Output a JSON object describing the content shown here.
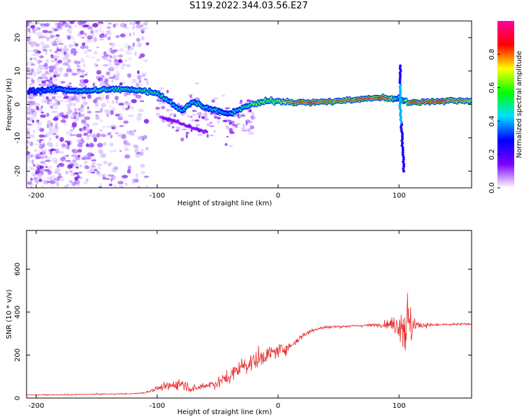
{
  "title": "S119.2022.344.03.56.E27",
  "chart_data": [
    {
      "type": "heatmap",
      "xlabel": "Height of straight line (km)",
      "ylabel": "Frequency (Hz)",
      "xlim": [
        -208,
        160
      ],
      "ylim": [
        -25,
        25
      ],
      "xticks": [
        -200,
        -100,
        0,
        100
      ],
      "yticks": [
        -20,
        -10,
        0,
        10,
        20
      ],
      "colorbar": {
        "label": "Normalized spectral amplitude",
        "range": [
          0,
          1
        ],
        "ticks": [
          0.0,
          0.2,
          0.4,
          0.6,
          0.8
        ],
        "tick_labels": [
          "0.0",
          "0.2",
          "0.4",
          "0.6",
          "0.8"
        ],
        "colors": [
          "#ffffff",
          "#7b00ff",
          "#0000ff",
          "#00e0ff",
          "#00ff00",
          "#ffff00",
          "#ff0000",
          "#ff00a0"
        ]
      },
      "ridge": {
        "x": [
          -205,
          -180,
          -160,
          -140,
          -120,
          -110,
          -100,
          -90,
          -80,
          -70,
          -60,
          -50,
          -40,
          -30,
          -20,
          -10,
          0,
          20,
          40,
          60,
          80,
          90,
          95,
          100,
          105,
          110,
          130,
          160
        ],
        "freq": [
          4,
          4.5,
          4,
          4.5,
          4.5,
          4,
          3.5,
          1,
          -2,
          1,
          -1,
          -2,
          -3,
          -1,
          0,
          1,
          1,
          0.5,
          0.8,
          1.2,
          2,
          2,
          1.5,
          2,
          1,
          0.5,
          1,
          1.2
        ],
        "amplitude": [
          0.25,
          0.35,
          0.4,
          0.45,
          0.45,
          0.5,
          0.45,
          0.4,
          0.4,
          0.45,
          0.4,
          0.4,
          0.35,
          0.45,
          0.6,
          0.55,
          0.65,
          0.9,
          0.8,
          0.85,
          0.85,
          0.9,
          0.6,
          0.4,
          0.5,
          0.85,
          0.9,
          0.7
        ]
      }
    },
    {
      "type": "line",
      "xlabel": "Height of straight line (km)",
      "ylabel": "SNR (10 * v/v)",
      "xlim": [
        -208,
        160
      ],
      "ylim": [
        0,
        780
      ],
      "xticks": [
        -200,
        -100,
        0,
        100
      ],
      "yticks": [
        0,
        200,
        400,
        600
      ],
      "series": [
        {
          "color": "#e83030",
          "x": [
            -208,
            -180,
            -150,
            -120,
            -110,
            -100,
            -90,
            -80,
            -70,
            -60,
            -50,
            -40,
            -30,
            -20,
            -10,
            0,
            10,
            20,
            30,
            40,
            60,
            80,
            90,
            100,
            105,
            110,
            115,
            130,
            160
          ],
          "y": [
            15,
            15,
            18,
            20,
            25,
            45,
            55,
            70,
            40,
            60,
            70,
            100,
            150,
            170,
            200,
            220,
            240,
            290,
            320,
            330,
            335,
            340,
            345,
            340,
            350,
            340,
            340,
            340,
            345
          ],
          "noise": [
            3,
            4,
            4,
            4,
            5,
            15,
            30,
            40,
            25,
            30,
            35,
            50,
            60,
            70,
            50,
            45,
            35,
            20,
            12,
            10,
            8,
            10,
            25,
            80,
            250,
            150,
            25,
            8,
            8
          ]
        }
      ]
    }
  ]
}
